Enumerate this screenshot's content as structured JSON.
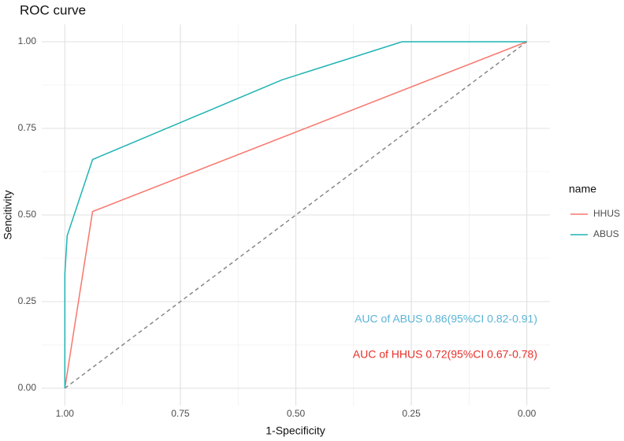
{
  "chart_data": {
    "type": "line",
    "title": "ROC curve",
    "x_label": "1-Specificity",
    "y_label": "Sencitivity",
    "legend_title": "name",
    "legend_position": "right",
    "xlim": [
      1.05,
      -0.05
    ],
    "ylim": [
      -0.05,
      1.05
    ],
    "xticks": [
      {
        "value": 1,
        "label": "1.00"
      },
      {
        "value": 0.75,
        "label": "0.75"
      },
      {
        "value": 0.5,
        "label": "0.50"
      },
      {
        "value": 0.25,
        "label": "0.25"
      },
      {
        "value": 0,
        "label": "0.00"
      }
    ],
    "yticks": [
      {
        "value": 0,
        "label": "0.00"
      },
      {
        "value": 0.25,
        "label": "0.25"
      },
      {
        "value": 0.5,
        "label": "0.50"
      },
      {
        "value": 0.75,
        "label": "0.75"
      },
      {
        "value": 1,
        "label": "1.00"
      }
    ],
    "grid": true,
    "minor_grid": true,
    "series": [
      {
        "name": "HHUS",
        "color": "#f8766d",
        "x": [
          1,
          0.94,
          0
        ],
        "values": [
          0,
          0.51,
          1
        ]
      },
      {
        "name": "ABUS",
        "color": "#1fb3b3",
        "x": [
          1,
          1,
          0.995,
          0.94,
          0.53,
          0.27,
          0
        ],
        "values": [
          0,
          0.33,
          0.44,
          0.66,
          0.89,
          1,
          1
        ]
      }
    ],
    "reference_line": {
      "color": "#888888",
      "x": [
        1,
        0
      ],
      "values": [
        0,
        1
      ]
    },
    "annotations": [
      {
        "text": "AUC of ABUS 0.86(95%CI 0.82-0.91)",
        "color": "#5ab4d6"
      },
      {
        "text": "AUC of HHUS 0.72(95%CI 0.67-0.78)",
        "color": "#e8302a"
      }
    ]
  }
}
